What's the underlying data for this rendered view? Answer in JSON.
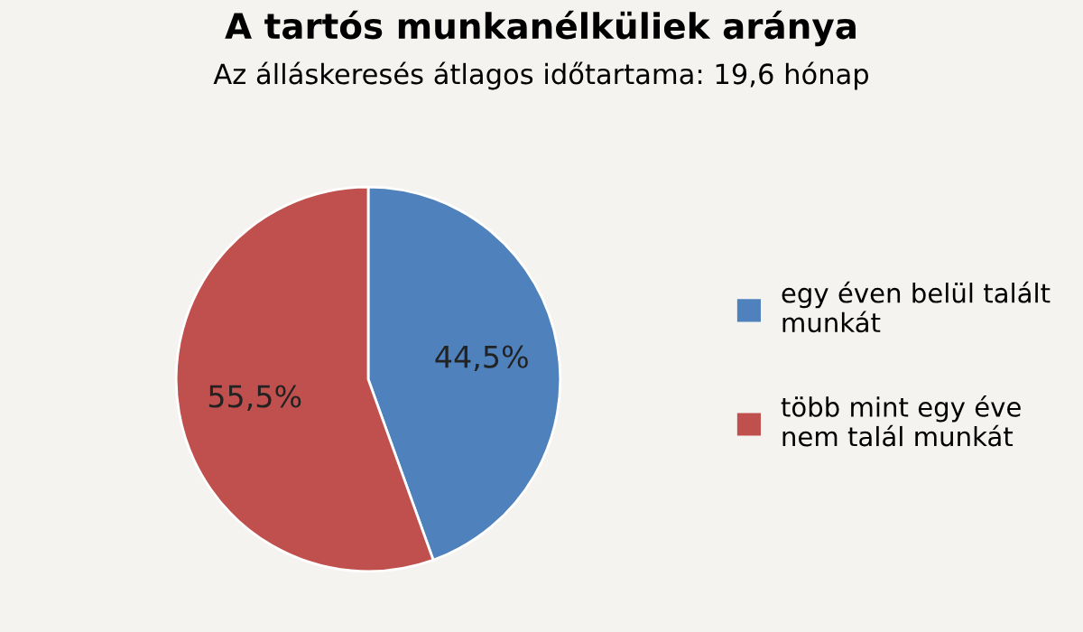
{
  "chart_data": {
    "type": "pie",
    "title": "A tartós munkanélküliek aránya",
    "subtitle": "Az álláskeresés átlagos időtartama: 19,6 hónap",
    "categories": [
      "egy éven belül talált\nmunkát",
      "több mint egy éve\nnem talál munkát"
    ],
    "values": [
      44.5,
      55.5
    ],
    "colors": [
      "#4f81bd",
      "#c0504d"
    ],
    "value_labels": [
      "44,5%",
      "55,5%"
    ],
    "legend": "right"
  }
}
